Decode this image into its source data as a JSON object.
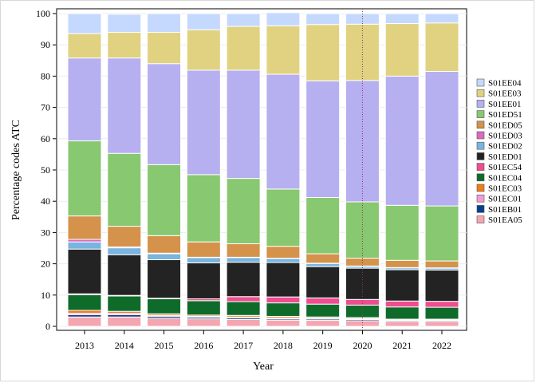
{
  "chart_data": {
    "type": "bar",
    "stacked": true,
    "title": "",
    "xlabel": "Year",
    "ylabel": "Percentage codes ATC",
    "ylim": [
      0,
      100
    ],
    "yticks": [
      "0",
      "10",
      "20",
      "30",
      "40",
      "50",
      "60",
      "70",
      "80",
      "90",
      "100"
    ],
    "categories": [
      "2013",
      "2014",
      "2015",
      "2016",
      "2017",
      "2018",
      "2019",
      "2020",
      "2021",
      "2022"
    ],
    "reference_line": {
      "x": "2020",
      "style": "dotted",
      "color": "#8b3a5a"
    },
    "legend_position": "right",
    "series": [
      {
        "name": "S01EA05",
        "color": "#f4a6b0",
        "values": [
          3.0,
          3.0,
          2.5,
          2.4,
          2.2,
          2.0,
          1.9,
          1.8,
          1.6,
          1.6
        ]
      },
      {
        "name": "S01EB01",
        "color": "#0a3d8f",
        "values": [
          0.7,
          0.7,
          0.6,
          0.5,
          0.5,
          0.4,
          0.4,
          0.4,
          0.3,
          0.3
        ]
      },
      {
        "name": "S01EC01",
        "color": "#f59ad8",
        "values": [
          0.5,
          0.5,
          0.4,
          0.3,
          0.3,
          0.3,
          0.3,
          0.3,
          0.2,
          0.2
        ]
      },
      {
        "name": "S01EC03",
        "color": "#f07c1a",
        "values": [
          0.9,
          0.6,
          0.5,
          0.4,
          0.5,
          0.5,
          0.4,
          0.3,
          0.2,
          0.2
        ]
      },
      {
        "name": "S01EC04",
        "color": "#0f6b2a",
        "values": [
          5.0,
          4.9,
          4.8,
          4.6,
          4.4,
          4.3,
          4.1,
          4.0,
          3.9,
          3.8
        ]
      },
      {
        "name": "S01EC54",
        "color": "#ee4d8f",
        "values": [
          0.3,
          0.2,
          0.2,
          0.6,
          1.6,
          1.9,
          2.0,
          1.8,
          1.9,
          1.9
        ]
      },
      {
        "name": "S01ED01",
        "color": "#232323",
        "values": [
          14.3,
          13.0,
          12.3,
          11.5,
          11.0,
          11.0,
          10.0,
          10.0,
          10.0,
          10.0
        ]
      },
      {
        "name": "S01ED02",
        "color": "#7ab4e0",
        "values": [
          2.3,
          2.2,
          1.9,
          1.7,
          1.5,
          1.3,
          1.0,
          0.6,
          0.6,
          0.6
        ]
      },
      {
        "name": "S01ED03",
        "color": "#d96bbf",
        "values": [
          0.8,
          0.3,
          0.2,
          0.1,
          0.1,
          0.1,
          0.1,
          0.1,
          0.1,
          0.1
        ]
      },
      {
        "name": "S01ED05",
        "color": "#d4924a",
        "values": [
          7.5,
          6.6,
          5.6,
          4.9,
          4.3,
          3.8,
          3.0,
          2.5,
          2.3,
          2.2
        ]
      },
      {
        "name": "S01ED51",
        "color": "#88c870",
        "values": [
          24.0,
          23.3,
          22.7,
          21.5,
          20.9,
          18.3,
          18.0,
          18.0,
          17.6,
          17.6
        ]
      },
      {
        "name": "S01EE01",
        "color": "#b6aff0",
        "values": [
          26.5,
          30.5,
          32.3,
          33.4,
          34.6,
          36.7,
          37.3,
          38.8,
          41.3,
          43.0
        ]
      },
      {
        "name": "S01EE03",
        "color": "#e0d280",
        "values": [
          7.8,
          8.2,
          10.0,
          12.9,
          14.0,
          15.5,
          18.0,
          18.0,
          16.8,
          15.5
        ]
      },
      {
        "name": "S01EE04",
        "color": "#c5d9ff",
        "values": [
          6.4,
          5.8,
          6.0,
          5.2,
          4.1,
          4.2,
          3.5,
          3.4,
          3.2,
          3.0
        ]
      }
    ]
  }
}
